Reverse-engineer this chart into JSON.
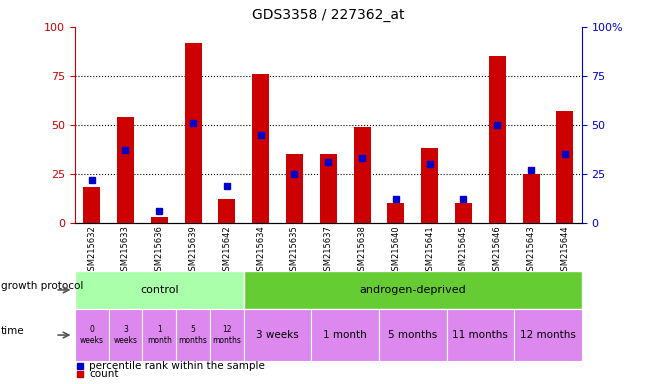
{
  "title": "GDS3358 / 227362_at",
  "samples": [
    "GSM215632",
    "GSM215633",
    "GSM215636",
    "GSM215639",
    "GSM215642",
    "GSM215634",
    "GSM215635",
    "GSM215637",
    "GSM215638",
    "GSM215640",
    "GSM215641",
    "GSM215645",
    "GSM215646",
    "GSM215643",
    "GSM215644"
  ],
  "count": [
    18,
    54,
    3,
    92,
    12,
    76,
    35,
    35,
    49,
    10,
    38,
    10,
    85,
    25,
    57
  ],
  "percentile": [
    22,
    37,
    6,
    51,
    19,
    45,
    25,
    31,
    33,
    12,
    30,
    12,
    50,
    27,
    35
  ],
  "ylim": [
    0,
    100
  ],
  "left_yticks": [
    0,
    25,
    50,
    75,
    100
  ],
  "right_yticks": [
    0,
    25,
    50,
    75,
    100
  ],
  "bar_color": "#cc0000",
  "percentile_color": "#0000cc",
  "background_color": "#ffffff",
  "control_color": "#aaffaa",
  "androgen_color": "#66cc33",
  "time_color": "#dd88ee",
  "control_label": "control",
  "androgen_label": "androgen-deprived",
  "time_control": [
    "0\nweeks",
    "3\nweeks",
    "1\nmonth",
    "5\nmonths",
    "12\nmonths"
  ],
  "time_androgen": [
    "3 weeks",
    "1 month",
    "5 months",
    "11 months",
    "12 months"
  ],
  "growth_protocol_label": "growth protocol",
  "time_label": "time",
  "legend_count": "count",
  "legend_percentile": "percentile rank within the sample",
  "tick_fontsize": 8,
  "title_fontsize": 10,
  "bar_width": 0.5
}
